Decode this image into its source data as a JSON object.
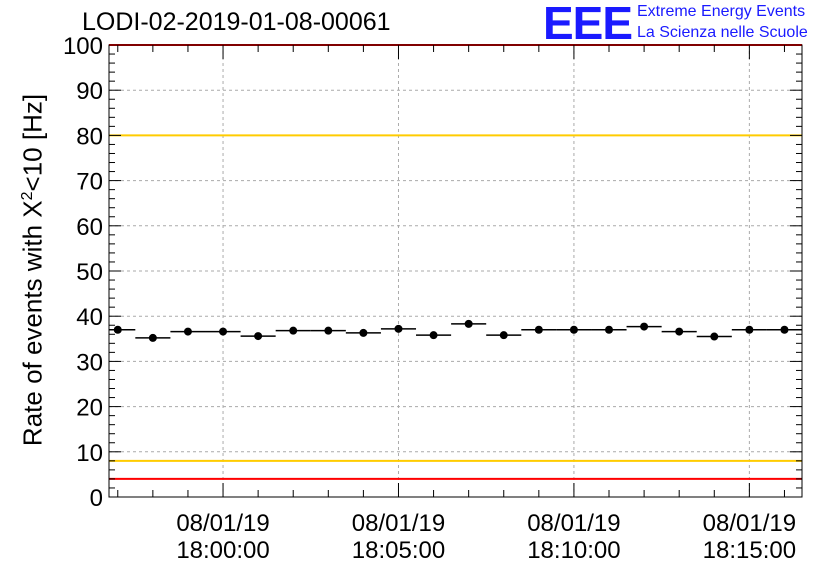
{
  "header": {
    "title": "LODI-02-2019-01-08-00061",
    "logo_mark": "EEE",
    "logo_line1": "Extreme Energy Events",
    "logo_line2": "La Scienza nelle Scuole"
  },
  "colors": {
    "points": "#000000",
    "grid": "#aaaaaa",
    "red_threshold": "#ff0000",
    "yellow_threshold": "#ffcc00",
    "logo": "#1a1aff"
  },
  "chart_data": {
    "type": "scatter",
    "title": "LODI-02-2019-01-08-00061",
    "ylabel": {
      "prefix": "Rate of events with X",
      "sup": "2",
      "suffix": "<10 [Hz]"
    },
    "xlabel": "",
    "ylim": [
      0,
      100
    ],
    "yticks": [
      "0",
      "10",
      "20",
      "30",
      "40",
      "50",
      "60",
      "70",
      "80",
      "90",
      "100"
    ],
    "xlim_minutes": [
      -3.25,
      16.5
    ],
    "xticks": [
      {
        "t": 0,
        "date": "08/01/19",
        "time": "18:00:00"
      },
      {
        "t": 5,
        "date": "08/01/19",
        "time": "18:05:00"
      },
      {
        "t": 10,
        "date": "08/01/19",
        "time": "18:10:00"
      },
      {
        "t": 15,
        "date": "08/01/19",
        "time": "18:15:00"
      }
    ],
    "grid": true,
    "bin_width_minutes": 1,
    "series": [
      {
        "x": [
          -3.0,
          -2.0,
          -1.0,
          0.0,
          1.0,
          2.0,
          3.0,
          4.0,
          5.0,
          6.0,
          7.0,
          8.0,
          9.0,
          10.0,
          11.0,
          12.0,
          13.0,
          14.0,
          15.0,
          16.0
        ],
        "values": [
          37.0,
          35.2,
          36.6,
          36.6,
          35.6,
          36.8,
          36.8,
          36.3,
          37.2,
          35.8,
          38.3,
          35.8,
          37.0,
          37.0,
          37.0,
          37.7,
          36.6,
          35.5,
          37.0,
          37.0
        ]
      }
    ],
    "reference_lines": [
      {
        "y": 100,
        "color": "#ff0000"
      },
      {
        "y": 80,
        "color": "#ffcc00"
      },
      {
        "y": 8,
        "color": "#ffcc00"
      },
      {
        "y": 4,
        "color": "#ff0000"
      }
    ]
  }
}
